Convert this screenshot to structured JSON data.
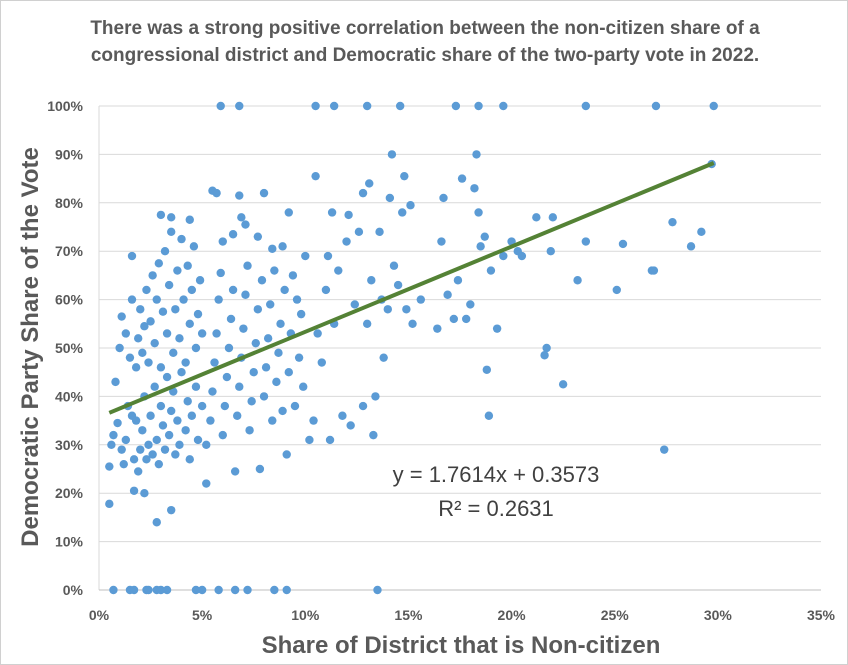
{
  "chart_data": {
    "type": "scatter",
    "title": "There was a strong positive correlation between the non-citizen share of a congressional district and Democratic share of the two-party vote in 2022.",
    "xlabel": "Share of District that is Non-citizen",
    "ylabel": "Democratic Party Share of the Vote",
    "xlim": [
      0,
      0.35
    ],
    "ylim": [
      0,
      1
    ],
    "x_ticks": [
      0,
      0.05,
      0.1,
      0.15,
      0.2,
      0.25,
      0.3,
      0.35
    ],
    "x_tick_labels": [
      "0%",
      "5%",
      "10%",
      "15%",
      "20%",
      "25%",
      "30%",
      "35%"
    ],
    "y_ticks": [
      0,
      0.1,
      0.2,
      0.3,
      0.4,
      0.5,
      0.6,
      0.7,
      0.8,
      0.9,
      1.0
    ],
    "y_tick_labels": [
      "0%",
      "10%",
      "20%",
      "30%",
      "40%",
      "50%",
      "60%",
      "70%",
      "80%",
      "90%",
      "100%"
    ],
    "grid": "horizontal",
    "point_color": "#5b9bd5",
    "trendline": {
      "slope": 1.7614,
      "intercept": 0.3573,
      "x_range": [
        0.005,
        0.298
      ],
      "color": "#548235",
      "equation": "y = 1.7614x + 0.3573",
      "r_squared": "R² = 0.2631"
    },
    "points": [
      [
        0.059,
        1.0
      ],
      [
        0.068,
        1.0
      ],
      [
        0.105,
        1.0
      ],
      [
        0.114,
        1.0
      ],
      [
        0.13,
        1.0
      ],
      [
        0.146,
        1.0
      ],
      [
        0.173,
        1.0
      ],
      [
        0.184,
        1.0
      ],
      [
        0.196,
        1.0
      ],
      [
        0.236,
        1.0
      ],
      [
        0.27,
        1.0
      ],
      [
        0.298,
        1.0
      ],
      [
        0.007,
        0.0
      ],
      [
        0.015,
        0.0
      ],
      [
        0.017,
        0.0
      ],
      [
        0.023,
        0.0
      ],
      [
        0.024,
        0.0
      ],
      [
        0.028,
        0.0
      ],
      [
        0.03,
        0.0
      ],
      [
        0.033,
        0.0
      ],
      [
        0.047,
        0.0
      ],
      [
        0.05,
        0.0
      ],
      [
        0.058,
        0.0
      ],
      [
        0.066,
        0.0
      ],
      [
        0.072,
        0.0
      ],
      [
        0.085,
        0.0
      ],
      [
        0.091,
        0.0
      ],
      [
        0.135,
        0.0
      ],
      [
        0.005,
        0.178
      ],
      [
        0.005,
        0.255
      ],
      [
        0.006,
        0.3
      ],
      [
        0.007,
        0.32
      ],
      [
        0.009,
        0.345
      ],
      [
        0.011,
        0.29
      ],
      [
        0.012,
        0.26
      ],
      [
        0.013,
        0.31
      ],
      [
        0.014,
        0.38
      ],
      [
        0.016,
        0.36
      ],
      [
        0.017,
        0.27
      ],
      [
        0.018,
        0.35
      ],
      [
        0.019,
        0.245
      ],
      [
        0.02,
        0.29
      ],
      [
        0.021,
        0.33
      ],
      [
        0.022,
        0.4
      ],
      [
        0.023,
        0.27
      ],
      [
        0.024,
        0.3
      ],
      [
        0.025,
        0.36
      ],
      [
        0.026,
        0.28
      ],
      [
        0.027,
        0.42
      ],
      [
        0.028,
        0.31
      ],
      [
        0.029,
        0.26
      ],
      [
        0.03,
        0.38
      ],
      [
        0.031,
        0.34
      ],
      [
        0.032,
        0.29
      ],
      [
        0.033,
        0.44
      ],
      [
        0.034,
        0.32
      ],
      [
        0.035,
        0.37
      ],
      [
        0.036,
        0.41
      ],
      [
        0.037,
        0.28
      ],
      [
        0.038,
        0.35
      ],
      [
        0.039,
        0.3
      ],
      [
        0.04,
        0.45
      ],
      [
        0.042,
        0.33
      ],
      [
        0.043,
        0.39
      ],
      [
        0.044,
        0.27
      ],
      [
        0.045,
        0.36
      ],
      [
        0.047,
        0.42
      ],
      [
        0.048,
        0.31
      ],
      [
        0.05,
        0.38
      ],
      [
        0.008,
        0.43
      ],
      [
        0.01,
        0.5
      ],
      [
        0.011,
        0.565
      ],
      [
        0.013,
        0.53
      ],
      [
        0.015,
        0.48
      ],
      [
        0.016,
        0.6
      ],
      [
        0.018,
        0.46
      ],
      [
        0.019,
        0.52
      ],
      [
        0.02,
        0.58
      ],
      [
        0.021,
        0.49
      ],
      [
        0.022,
        0.545
      ],
      [
        0.023,
        0.62
      ],
      [
        0.024,
        0.47
      ],
      [
        0.025,
        0.555
      ],
      [
        0.026,
        0.65
      ],
      [
        0.027,
        0.51
      ],
      [
        0.028,
        0.6
      ],
      [
        0.029,
        0.675
      ],
      [
        0.03,
        0.46
      ],
      [
        0.031,
        0.575
      ],
      [
        0.032,
        0.7
      ],
      [
        0.033,
        0.53
      ],
      [
        0.034,
        0.63
      ],
      [
        0.035,
        0.74
      ],
      [
        0.036,
        0.49
      ],
      [
        0.037,
        0.58
      ],
      [
        0.038,
        0.66
      ],
      [
        0.039,
        0.52
      ],
      [
        0.04,
        0.725
      ],
      [
        0.041,
        0.6
      ],
      [
        0.042,
        0.47
      ],
      [
        0.043,
        0.67
      ],
      [
        0.044,
        0.55
      ],
      [
        0.045,
        0.62
      ],
      [
        0.046,
        0.71
      ],
      [
        0.047,
        0.5
      ],
      [
        0.048,
        0.57
      ],
      [
        0.049,
        0.64
      ],
      [
        0.05,
        0.53
      ],
      [
        0.016,
        0.69
      ],
      [
        0.028,
        0.14
      ],
      [
        0.022,
        0.2
      ],
      [
        0.035,
        0.165
      ],
      [
        0.017,
        0.205
      ],
      [
        0.03,
        0.775
      ],
      [
        0.035,
        0.77
      ],
      [
        0.044,
        0.765
      ],
      [
        0.052,
        0.22
      ],
      [
        0.052,
        0.3
      ],
      [
        0.054,
        0.35
      ],
      [
        0.055,
        0.41
      ],
      [
        0.056,
        0.47
      ],
      [
        0.057,
        0.53
      ],
      [
        0.058,
        0.6
      ],
      [
        0.059,
        0.655
      ],
      [
        0.06,
        0.32
      ],
      [
        0.061,
        0.38
      ],
      [
        0.062,
        0.44
      ],
      [
        0.063,
        0.5
      ],
      [
        0.064,
        0.56
      ],
      [
        0.065,
        0.62
      ],
      [
        0.066,
        0.245
      ],
      [
        0.067,
        0.36
      ],
      [
        0.068,
        0.42
      ],
      [
        0.069,
        0.48
      ],
      [
        0.07,
        0.54
      ],
      [
        0.071,
        0.61
      ],
      [
        0.072,
        0.67
      ],
      [
        0.073,
        0.33
      ],
      [
        0.074,
        0.39
      ],
      [
        0.075,
        0.45
      ],
      [
        0.076,
        0.51
      ],
      [
        0.077,
        0.58
      ],
      [
        0.078,
        0.25
      ],
      [
        0.079,
        0.64
      ],
      [
        0.08,
        0.4
      ],
      [
        0.081,
        0.46
      ],
      [
        0.082,
        0.52
      ],
      [
        0.083,
        0.59
      ],
      [
        0.084,
        0.35
      ],
      [
        0.085,
        0.66
      ],
      [
        0.086,
        0.43
      ],
      [
        0.087,
        0.49
      ],
      [
        0.088,
        0.55
      ],
      [
        0.089,
        0.37
      ],
      [
        0.09,
        0.62
      ],
      [
        0.091,
        0.28
      ],
      [
        0.092,
        0.45
      ],
      [
        0.093,
        0.53
      ],
      [
        0.094,
        0.65
      ],
      [
        0.095,
        0.38
      ],
      [
        0.096,
        0.6
      ],
      [
        0.097,
        0.48
      ],
      [
        0.098,
        0.57
      ],
      [
        0.099,
        0.42
      ],
      [
        0.1,
        0.69
      ],
      [
        0.055,
        0.825
      ],
      [
        0.057,
        0.82
      ],
      [
        0.068,
        0.815
      ],
      [
        0.08,
        0.82
      ],
      [
        0.069,
        0.77
      ],
      [
        0.071,
        0.755
      ],
      [
        0.065,
        0.735
      ],
      [
        0.077,
        0.73
      ],
      [
        0.084,
        0.705
      ],
      [
        0.089,
        0.71
      ],
      [
        0.092,
        0.78
      ],
      [
        0.06,
        0.72
      ],
      [
        0.102,
        0.31
      ],
      [
        0.104,
        0.35
      ],
      [
        0.106,
        0.53
      ],
      [
        0.108,
        0.47
      ],
      [
        0.11,
        0.62
      ],
      [
        0.111,
        0.69
      ],
      [
        0.112,
        0.31
      ],
      [
        0.114,
        0.55
      ],
      [
        0.116,
        0.66
      ],
      [
        0.118,
        0.36
      ],
      [
        0.12,
        0.72
      ],
      [
        0.122,
        0.34
      ],
      [
        0.124,
        0.59
      ],
      [
        0.126,
        0.74
      ],
      [
        0.128,
        0.38
      ],
      [
        0.13,
        0.55
      ],
      [
        0.132,
        0.64
      ],
      [
        0.133,
        0.32
      ],
      [
        0.134,
        0.4
      ],
      [
        0.136,
        0.74
      ],
      [
        0.138,
        0.48
      ],
      [
        0.14,
        0.58
      ],
      [
        0.142,
        0.9
      ],
      [
        0.143,
        0.67
      ],
      [
        0.145,
        0.63
      ],
      [
        0.147,
        0.78
      ],
      [
        0.149,
        0.58
      ],
      [
        0.151,
        0.795
      ],
      [
        0.152,
        0.55
      ],
      [
        0.105,
        0.855
      ],
      [
        0.113,
        0.78
      ],
      [
        0.121,
        0.775
      ],
      [
        0.128,
        0.82
      ],
      [
        0.131,
        0.84
      ],
      [
        0.141,
        0.81
      ],
      [
        0.148,
        0.855
      ],
      [
        0.137,
        0.6
      ],
      [
        0.156,
        0.6
      ],
      [
        0.164,
        0.54
      ],
      [
        0.166,
        0.72
      ],
      [
        0.167,
        0.81
      ],
      [
        0.169,
        0.61
      ],
      [
        0.172,
        0.56
      ],
      [
        0.174,
        0.64
      ],
      [
        0.176,
        0.85
      ],
      [
        0.178,
        0.56
      ],
      [
        0.18,
        0.59
      ],
      [
        0.182,
        0.83
      ],
      [
        0.183,
        0.9
      ],
      [
        0.184,
        0.78
      ],
      [
        0.185,
        0.71
      ],
      [
        0.187,
        0.73
      ],
      [
        0.188,
        0.455
      ],
      [
        0.189,
        0.36
      ],
      [
        0.19,
        0.66
      ],
      [
        0.193,
        0.54
      ],
      [
        0.196,
        0.69
      ],
      [
        0.2,
        0.72
      ],
      [
        0.203,
        0.7
      ],
      [
        0.205,
        0.69
      ],
      [
        0.212,
        0.77
      ],
      [
        0.216,
        0.485
      ],
      [
        0.217,
        0.5
      ],
      [
        0.219,
        0.7
      ],
      [
        0.22,
        0.77
      ],
      [
        0.225,
        0.425
      ],
      [
        0.232,
        0.64
      ],
      [
        0.236,
        0.72
      ],
      [
        0.251,
        0.62
      ],
      [
        0.254,
        0.715
      ],
      [
        0.268,
        0.66
      ],
      [
        0.269,
        0.66
      ],
      [
        0.274,
        0.29
      ],
      [
        0.278,
        0.76
      ],
      [
        0.287,
        0.71
      ],
      [
        0.292,
        0.74
      ],
      [
        0.297,
        0.88
      ]
    ]
  }
}
